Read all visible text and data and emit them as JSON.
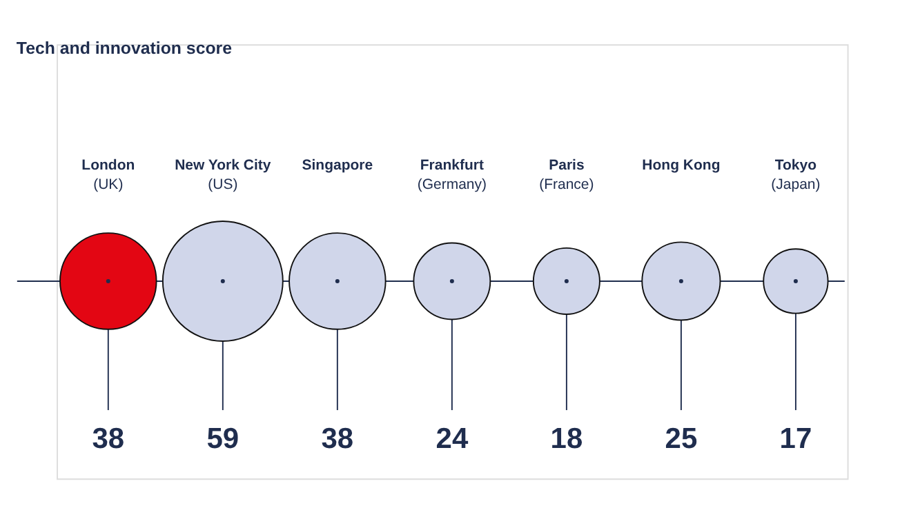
{
  "chart_data": {
    "type": "other",
    "title": "Tech and innovation score",
    "categories": [
      "London\n(UK)",
      "New York City\n(US)",
      "Singapore",
      "Frankfurt\n(Germany)",
      "Paris\n(France)",
      "Hong Kong",
      "Tokyo\n(Japan)"
    ],
    "values": [
      38,
      59,
      38,
      24,
      18,
      25,
      17
    ],
    "colors": [
      "#e30613",
      "#d0d6ea",
      "#d0d6ea",
      "#d0d6ea",
      "#d0d6ea",
      "#d0d6ea",
      "#d0d6ea"
    ],
    "data_labels": true
  }
}
